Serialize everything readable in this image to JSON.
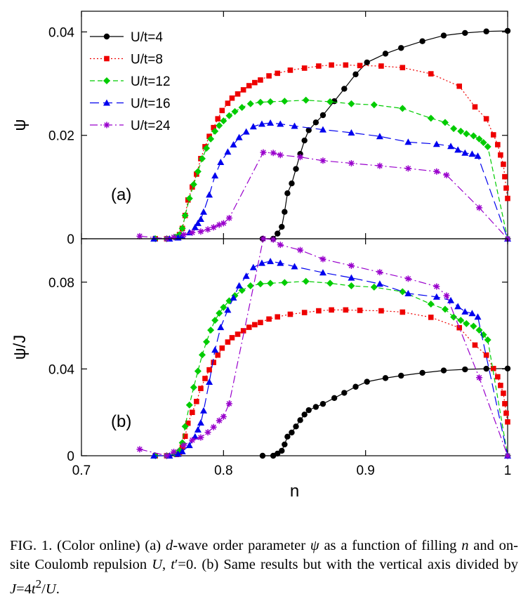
{
  "caption": {
    "p1": "FIG. 1. (Color online) (a) ",
    "d": "d",
    "p2": "-wave order parameter ",
    "psi": "ψ",
    "p3": " as a function of filling ",
    "n": "n",
    "p4": " and on-site Coulomb repulsion ",
    "U1": "U",
    "p5": ", ",
    "t": "t",
    "p6": "′=0. (b) Same results but with the vertical axis divided by ",
    "J": "J",
    "p7": "=4",
    "t2": "t",
    "sup": "2",
    "p8": "/",
    "U2": "U",
    "p9": "."
  },
  "chart_data": [
    {
      "type": "line",
      "panel_label": "(a)",
      "ylabel": "ψ",
      "xlabel": "",
      "xlim": [
        0.7,
        1.0
      ],
      "ylim": [
        0,
        0.044
      ],
      "yticks": [
        "0",
        "0.02",
        "0.04"
      ],
      "yticks_values": [
        0,
        0.02,
        0.04
      ],
      "xticks_values": [
        0.7,
        0.8,
        0.9,
        1.0
      ],
      "legend_placement": "top-left",
      "series": [
        {
          "name": "U/t=4",
          "color": "#000000",
          "dash": "solid",
          "marker": "circle",
          "x": [
            0.8275,
            0.835,
            0.838,
            0.841,
            0.843,
            0.845,
            0.848,
            0.851,
            0.854,
            0.857,
            0.86,
            0.865,
            0.87,
            0.878,
            0.885,
            0.893,
            0.901,
            0.914,
            0.925,
            0.94,
            0.955,
            0.97,
            0.985,
            1.0
          ],
          "y": [
            0.0,
            0.0,
            0.001,
            0.0023,
            0.0052,
            0.0088,
            0.0107,
            0.0135,
            0.0164,
            0.019,
            0.021,
            0.0225,
            0.0239,
            0.0266,
            0.029,
            0.0318,
            0.0341,
            0.0358,
            0.0369,
            0.0382,
            0.0393,
            0.0398,
            0.0401,
            0.0402
          ]
        },
        {
          "name": "U/t=8",
          "color": "#ee0000",
          "dash": "dotted",
          "marker": "square",
          "x": [
            0.752,
            0.76,
            0.767,
            0.769,
            0.771,
            0.773,
            0.775,
            0.778,
            0.781,
            0.784,
            0.787,
            0.79,
            0.793,
            0.796,
            0.799,
            0.803,
            0.806,
            0.81,
            0.814,
            0.818,
            0.822,
            0.826,
            0.832,
            0.838,
            0.847,
            0.857,
            0.867,
            0.876,
            0.886,
            0.896,
            0.911,
            0.926,
            0.946,
            0.966,
            0.977,
            0.985,
            0.99,
            0.993,
            0.995,
            0.997,
            0.998,
            0.999,
            1.0
          ],
          "y": [
            0.0,
            0.0,
            0.0003,
            0.0008,
            0.002,
            0.0045,
            0.0075,
            0.01,
            0.0125,
            0.0155,
            0.0178,
            0.0198,
            0.0215,
            0.0232,
            0.0248,
            0.0262,
            0.0272,
            0.028,
            0.0288,
            0.0296,
            0.0302,
            0.0307,
            0.0315,
            0.032,
            0.0326,
            0.033,
            0.0334,
            0.0336,
            0.0336,
            0.0335,
            0.0334,
            0.0331,
            0.0319,
            0.0295,
            0.0255,
            0.0232,
            0.0201,
            0.0182,
            0.0162,
            0.0144,
            0.012,
            0.0098,
            0.0078
          ]
        },
        {
          "name": "U/t=12",
          "color": "#00cc00",
          "dash": "dashed",
          "marker": "diamond",
          "x": [
            0.752,
            0.76,
            0.766,
            0.769,
            0.771,
            0.773,
            0.776,
            0.779,
            0.782,
            0.785,
            0.788,
            0.791,
            0.794,
            0.797,
            0.8,
            0.804,
            0.808,
            0.813,
            0.819,
            0.826,
            0.833,
            0.843,
            0.858,
            0.875,
            0.89,
            0.906,
            0.926,
            0.946,
            0.956,
            0.962,
            0.967,
            0.971,
            0.976,
            0.98,
            0.983,
            0.986,
            1.0
          ],
          "y": [
            0.0,
            0.0,
            0.0003,
            0.0008,
            0.002,
            0.0045,
            0.0078,
            0.0105,
            0.013,
            0.0155,
            0.0175,
            0.0193,
            0.0208,
            0.0219,
            0.0228,
            0.0238,
            0.0246,
            0.0254,
            0.0261,
            0.0264,
            0.0265,
            0.0266,
            0.0268,
            0.0265,
            0.0261,
            0.0259,
            0.0252,
            0.0233,
            0.0225,
            0.0213,
            0.0208,
            0.0203,
            0.0199,
            0.0193,
            0.0186,
            0.0178,
            0.0
          ]
        },
        {
          "name": "U/t=16",
          "color": "#0000ee",
          "dash": "longdash",
          "marker": "triangle",
          "x": [
            0.751,
            0.762,
            0.768,
            0.771,
            0.776,
            0.78,
            0.782,
            0.784,
            0.786,
            0.79,
            0.794,
            0.798,
            0.803,
            0.807,
            0.811,
            0.816,
            0.821,
            0.827,
            0.833,
            0.84,
            0.85,
            0.87,
            0.89,
            0.91,
            0.93,
            0.95,
            0.96,
            0.965,
            0.97,
            0.975,
            0.979,
            1.0
          ],
          "y": [
            0.0,
            0.0,
            0.0002,
            0.0005,
            0.0012,
            0.0022,
            0.003,
            0.0038,
            0.0052,
            0.0085,
            0.0122,
            0.0148,
            0.0168,
            0.0182,
            0.0196,
            0.0207,
            0.0217,
            0.0222,
            0.0224,
            0.0222,
            0.0218,
            0.0211,
            0.0205,
            0.0198,
            0.0187,
            0.0183,
            0.0179,
            0.0172,
            0.0166,
            0.0164,
            0.016,
            0.0
          ]
        },
        {
          "name": "U/t=24",
          "color": "#9900cc",
          "dash": "dashdot",
          "marker": "star",
          "x": [
            0.741,
            0.76,
            0.765,
            0.772,
            0.778,
            0.784,
            0.789,
            0.793,
            0.797,
            0.8,
            0.804,
            0.828,
            0.835,
            0.84,
            0.854,
            0.87,
            0.89,
            0.91,
            0.93,
            0.95,
            0.957,
            0.98,
            1.0
          ],
          "y": [
            0.0005,
            0.0,
            0.0003,
            0.0008,
            0.0012,
            0.0014,
            0.0018,
            0.0022,
            0.0027,
            0.003,
            0.004,
            0.0167,
            0.0166,
            0.0162,
            0.0158,
            0.0151,
            0.0146,
            0.0141,
            0.0136,
            0.013,
            0.0123,
            0.006,
            0.0
          ]
        }
      ]
    },
    {
      "type": "line",
      "panel_label": "(b)",
      "ylabel": "ψ/J",
      "xlabel": "n",
      "xlim": [
        0.7,
        1.0
      ],
      "ylim": [
        0,
        0.1
      ],
      "xticks": [
        "0.7",
        "0.8",
        "0.9",
        "1"
      ],
      "xticks_values": [
        0.7,
        0.8,
        0.9,
        1.0
      ],
      "yticks": [
        "0",
        "0.04",
        "0.08"
      ],
      "yticks_values": [
        0,
        0.04,
        0.08
      ],
      "series": [
        {
          "name": "U/t=4",
          "color": "#000000",
          "dash": "solid",
          "marker": "circle",
          "x": [
            0.8275,
            0.835,
            0.838,
            0.841,
            0.843,
            0.845,
            0.848,
            0.851,
            0.854,
            0.857,
            0.86,
            0.865,
            0.87,
            0.878,
            0.885,
            0.893,
            0.901,
            0.914,
            0.925,
            0.94,
            0.955,
            0.97,
            0.985,
            1.0
          ],
          "y": [
            0.0,
            0.0,
            0.001,
            0.0023,
            0.0052,
            0.0088,
            0.0107,
            0.0135,
            0.0164,
            0.019,
            0.021,
            0.0225,
            0.0239,
            0.0266,
            0.029,
            0.0318,
            0.0341,
            0.0358,
            0.0369,
            0.0382,
            0.0393,
            0.0398,
            0.0401,
            0.0402
          ]
        },
        {
          "name": "U/t=8",
          "color": "#ee0000",
          "dash": "dotted",
          "marker": "square",
          "x": [
            0.752,
            0.76,
            0.767,
            0.769,
            0.771,
            0.773,
            0.775,
            0.778,
            0.781,
            0.784,
            0.787,
            0.79,
            0.793,
            0.796,
            0.799,
            0.803,
            0.806,
            0.81,
            0.814,
            0.818,
            0.822,
            0.826,
            0.832,
            0.838,
            0.847,
            0.857,
            0.867,
            0.876,
            0.886,
            0.896,
            0.911,
            0.926,
            0.946,
            0.966,
            0.977,
            0.985,
            0.99,
            0.993,
            0.995,
            0.997,
            0.998,
            0.999,
            1.0
          ],
          "y": [
            0.0,
            0.0,
            0.0006,
            0.0016,
            0.004,
            0.009,
            0.015,
            0.02,
            0.025,
            0.031,
            0.0356,
            0.0396,
            0.043,
            0.0464,
            0.0496,
            0.0524,
            0.0544,
            0.056,
            0.0576,
            0.0592,
            0.0604,
            0.0614,
            0.063,
            0.064,
            0.0652,
            0.066,
            0.0668,
            0.0672,
            0.0672,
            0.067,
            0.0668,
            0.0662,
            0.0638,
            0.059,
            0.051,
            0.0464,
            0.0402,
            0.0364,
            0.0324,
            0.0288,
            0.024,
            0.0196,
            0.0156
          ]
        },
        {
          "name": "U/t=12",
          "color": "#00cc00",
          "dash": "dashed",
          "marker": "diamond",
          "x": [
            0.752,
            0.76,
            0.766,
            0.769,
            0.771,
            0.773,
            0.776,
            0.779,
            0.782,
            0.785,
            0.788,
            0.791,
            0.794,
            0.797,
            0.8,
            0.804,
            0.808,
            0.813,
            0.819,
            0.826,
            0.833,
            0.843,
            0.858,
            0.875,
            0.89,
            0.906,
            0.926,
            0.946,
            0.956,
            0.962,
            0.967,
            0.971,
            0.976,
            0.98,
            0.983,
            0.986,
            1.0
          ],
          "y": [
            0.0,
            0.0,
            0.0009,
            0.0024,
            0.006,
            0.0135,
            0.0234,
            0.0315,
            0.039,
            0.0465,
            0.0525,
            0.0579,
            0.0624,
            0.0657,
            0.0684,
            0.0714,
            0.0738,
            0.0762,
            0.0783,
            0.0792,
            0.0795,
            0.0798,
            0.0804,
            0.0795,
            0.0783,
            0.0777,
            0.0756,
            0.0699,
            0.0675,
            0.0639,
            0.0624,
            0.0609,
            0.0597,
            0.0579,
            0.0558,
            0.0534,
            0.0
          ]
        },
        {
          "name": "U/t=16",
          "color": "#0000ee",
          "dash": "longdash",
          "marker": "triangle",
          "x": [
            0.751,
            0.762,
            0.768,
            0.771,
            0.776,
            0.78,
            0.782,
            0.784,
            0.786,
            0.79,
            0.794,
            0.798,
            0.803,
            0.807,
            0.811,
            0.816,
            0.821,
            0.827,
            0.833,
            0.84,
            0.85,
            0.87,
            0.89,
            0.91,
            0.93,
            0.95,
            0.96,
            0.965,
            0.97,
            0.975,
            0.979,
            1.0
          ],
          "y": [
            0.0,
            0.0,
            0.0008,
            0.002,
            0.0048,
            0.0088,
            0.012,
            0.0152,
            0.0208,
            0.034,
            0.0488,
            0.0592,
            0.0672,
            0.0728,
            0.0784,
            0.0828,
            0.0868,
            0.0888,
            0.0896,
            0.0888,
            0.0872,
            0.0844,
            0.082,
            0.0792,
            0.0748,
            0.0732,
            0.0716,
            0.0688,
            0.0664,
            0.0656,
            0.064,
            0.0
          ]
        },
        {
          "name": "U/t=24",
          "color": "#9900cc",
          "dash": "dashdot",
          "marker": "star",
          "x": [
            0.741,
            0.76,
            0.765,
            0.772,
            0.778,
            0.784,
            0.789,
            0.793,
            0.797,
            0.8,
            0.804,
            0.828,
            0.835,
            0.84,
            0.854,
            0.87,
            0.89,
            0.91,
            0.93,
            0.95,
            0.957,
            0.98,
            1.0
          ],
          "y": [
            0.003,
            0.0,
            0.0018,
            0.0048,
            0.0072,
            0.0084,
            0.0108,
            0.0132,
            0.0162,
            0.018,
            0.024,
            0.1,
            0.0996,
            0.0972,
            0.0948,
            0.0906,
            0.0876,
            0.0846,
            0.0816,
            0.078,
            0.0738,
            0.036,
            0.0
          ]
        }
      ]
    }
  ]
}
